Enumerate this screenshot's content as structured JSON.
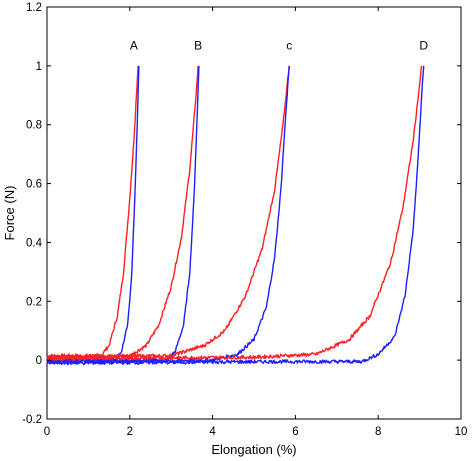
{
  "chart_data": {
    "type": "line",
    "xlabel": "Elongation (%)",
    "ylabel": "Force (N)",
    "xlim": [
      0,
      10
    ],
    "ylim": [
      -0.2,
      1.2
    ],
    "grid": false,
    "legend": "none",
    "x_ticks": [
      0,
      2,
      4,
      6,
      8,
      10
    ],
    "x_tick_labels": [
      "0",
      "2",
      "4",
      "6",
      "8",
      "10"
    ],
    "y_ticks": [
      -0.2,
      0,
      0.2,
      0.4,
      0.6,
      0.8,
      1,
      1.2
    ],
    "y_tick_labels": [
      "-0.2",
      "0",
      "0.2",
      "0.4",
      "0.6",
      "0.8",
      "1",
      "1.2"
    ],
    "colors": {
      "red": "#ff2020",
      "blue": "#1f1fff"
    },
    "series": [
      {
        "color": "red",
        "points": [
          [
            0,
            0.015
          ],
          [
            1.3,
            0.015
          ],
          [
            1.5,
            0.05
          ],
          [
            1.7,
            0.15
          ],
          [
            1.85,
            0.3
          ],
          [
            2.0,
            0.55
          ],
          [
            2.1,
            0.75
          ],
          [
            2.2,
            1.0
          ]
        ]
      },
      {
        "color": "blue",
        "points": [
          [
            0,
            0.0
          ],
          [
            1.65,
            0.0
          ],
          [
            1.8,
            0.03
          ],
          [
            1.95,
            0.12
          ],
          [
            2.05,
            0.3
          ],
          [
            2.12,
            0.55
          ],
          [
            2.18,
            0.8
          ],
          [
            2.22,
            1.0
          ]
        ]
      },
      {
        "color": "red",
        "points": [
          [
            0,
            0.01
          ],
          [
            2.0,
            0.015
          ],
          [
            2.4,
            0.05
          ],
          [
            2.7,
            0.12
          ],
          [
            3.0,
            0.25
          ],
          [
            3.25,
            0.42
          ],
          [
            3.45,
            0.65
          ],
          [
            3.6,
            0.9
          ],
          [
            3.65,
            1.0
          ]
        ]
      },
      {
        "color": "blue",
        "points": [
          [
            0,
            -0.005
          ],
          [
            2.9,
            0.0
          ],
          [
            3.1,
            0.03
          ],
          [
            3.3,
            0.12
          ],
          [
            3.45,
            0.3
          ],
          [
            3.55,
            0.55
          ],
          [
            3.62,
            0.8
          ],
          [
            3.67,
            1.0
          ]
        ]
      },
      {
        "color": "red",
        "points": [
          [
            0,
            0.01
          ],
          [
            3.0,
            0.015
          ],
          [
            3.8,
            0.05
          ],
          [
            4.3,
            0.1
          ],
          [
            4.8,
            0.22
          ],
          [
            5.2,
            0.38
          ],
          [
            5.5,
            0.58
          ],
          [
            5.7,
            0.8
          ],
          [
            5.85,
            1.0
          ]
        ]
      },
      {
        "color": "blue",
        "points": [
          [
            0,
            -0.005
          ],
          [
            4.0,
            0.0
          ],
          [
            4.6,
            0.02
          ],
          [
            5.0,
            0.07
          ],
          [
            5.3,
            0.18
          ],
          [
            5.5,
            0.35
          ],
          [
            5.65,
            0.58
          ],
          [
            5.75,
            0.8
          ],
          [
            5.85,
            1.0
          ]
        ]
      },
      {
        "color": "red",
        "points": [
          [
            0,
            0.005
          ],
          [
            5.0,
            0.01
          ],
          [
            6.5,
            0.02
          ],
          [
            7.3,
            0.07
          ],
          [
            7.8,
            0.15
          ],
          [
            8.3,
            0.33
          ],
          [
            8.6,
            0.52
          ],
          [
            8.85,
            0.75
          ],
          [
            9.05,
            1.0
          ]
        ]
      },
      {
        "color": "blue",
        "points": [
          [
            0,
            -0.01
          ],
          [
            5.5,
            -0.005
          ],
          [
            7.6,
            -0.005
          ],
          [
            8.0,
            0.02
          ],
          [
            8.4,
            0.08
          ],
          [
            8.65,
            0.22
          ],
          [
            8.85,
            0.45
          ],
          [
            8.97,
            0.7
          ],
          [
            9.05,
            0.9
          ],
          [
            9.1,
            1.0
          ]
        ]
      }
    ],
    "annotations": [
      {
        "text": "A",
        "x": 2.1,
        "y": 1.07
      },
      {
        "text": "B",
        "x": 3.65,
        "y": 1.07
      },
      {
        "text": "c",
        "x": 5.85,
        "y": 1.07
      },
      {
        "text": "D",
        "x": 9.1,
        "y": 1.07
      }
    ]
  }
}
